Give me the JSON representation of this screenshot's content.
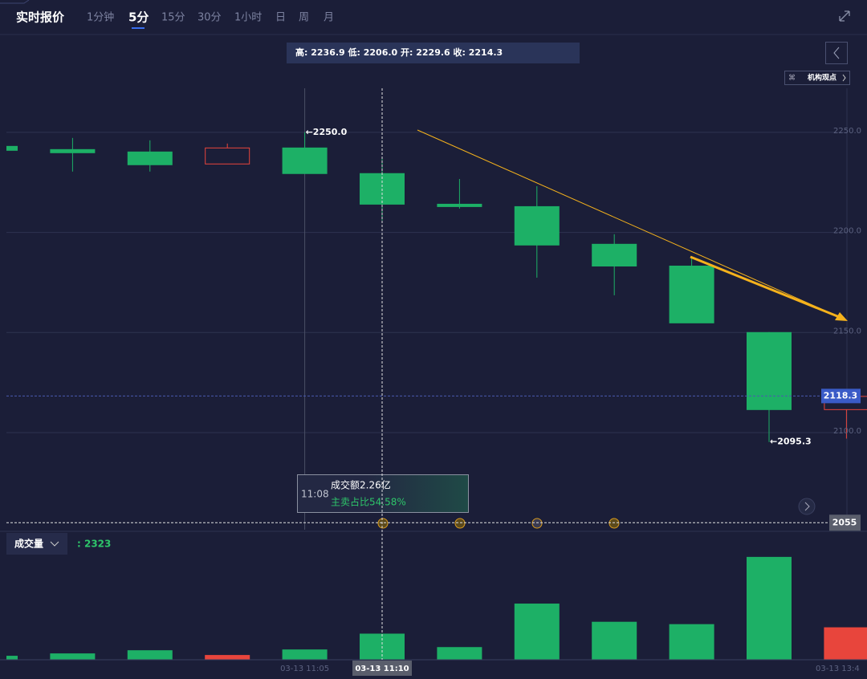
{
  "header": {
    "title": "实时报价",
    "tabs": [
      "1分钟",
      "5分",
      "15分",
      "30分",
      "1小时",
      "日",
      "周",
      "月"
    ],
    "active_tab": 1
  },
  "ohlc_readout": "高: 2236.9 低: 2206.0 开: 2229.6 收: 2214.3",
  "view_button": "机构观点",
  "tooltip": {
    "time": "11:08",
    "amount": "成交额2.26亿",
    "sell_ratio": "主卖占比54.58%"
  },
  "chart_data": [
    {
      "type": "candlestick",
      "categories": [
        null,
        null,
        null,
        null,
        "03-13 11:05",
        "03-13 11:10",
        null,
        null,
        null,
        null,
        null,
        "03-13 13:4"
      ],
      "open": [
        2243.2,
        2241.6,
        2240.4,
        2234.4,
        2242.4,
        2229.6,
        2214.3,
        2213.1,
        2194.3,
        2183.4,
        2150.2,
        2111.7
      ],
      "high": [
        2243.2,
        2247.2,
        2246.0,
        2244.4,
        2250.0,
        2236.9,
        2226.7,
        2223.1,
        2199.1,
        2187.9,
        2150.2,
        2121.0
      ],
      "low": [
        2241.2,
        2230.4,
        2230.4,
        2234.4,
        2229.6,
        2206.0,
        2211.9,
        2177.4,
        2168.6,
        2155.0,
        2095.3,
        2097.0
      ],
      "close": [
        2241.2,
        2240.0,
        2234.0,
        2242.4,
        2229.6,
        2214.3,
        2213.1,
        2193.9,
        2183.4,
        2155.0,
        2111.7,
        2118.3
      ],
      "up_color": "#e8453c",
      "down_color": "#1db066",
      "ylim": [
        2051.5,
        2272
      ],
      "yticks": [
        {
          "value": 2100,
          "label": "2100.0"
        },
        {
          "value": 2150,
          "label": "2150.0"
        },
        {
          "value": 2200,
          "label": "2200.0"
        },
        {
          "value": 2250,
          "label": "2250.0"
        }
      ],
      "grid": true,
      "crosshair_index": 5,
      "last_price": {
        "value": 2118.3,
        "label": "2118.3"
      },
      "reference_line": {
        "value": 2055,
        "label": "2055"
      },
      "annotations": [
        {
          "index": 4,
          "value": 2250.0,
          "text": "←2250.0"
        },
        {
          "index": 10,
          "value": 2095.3,
          "text": "←2095.3"
        }
      ]
    },
    {
      "type": "bar",
      "label": "成交量",
      "readout": ": 2323",
      "values": [
        352,
        563,
        845,
        422,
        915,
        2323,
        1126,
        4998,
        3379,
        3168,
        9152,
        2886
      ],
      "ylim": [
        0,
        10000
      ]
    }
  ]
}
